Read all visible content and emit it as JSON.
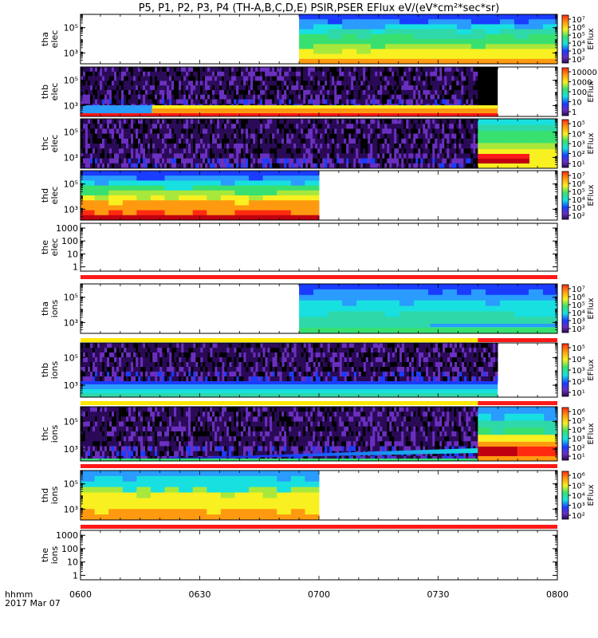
{
  "title": "P5, P1, P2, P3, P4 (TH-A,B,C,D,E) PSIR,PSER EFlux eV/(eV*cm²*sec*sr)",
  "colors": {
    "black": "#000000",
    "indigo": "#2a0a57",
    "purple": "#6a2fbf",
    "blue": "#1a3cff",
    "skyblue": "#2a9bff",
    "cyan": "#18e0e0",
    "teal": "#2fd8a8",
    "green": "#38e070",
    "yellowgreen": "#a8e83c",
    "yellow": "#f8f020",
    "orange": "#ff9a10",
    "red": "#ff2a10",
    "darkred": "#c00010",
    "bar_red": "#ff1818",
    "bar_yellow": "#ffe800"
  },
  "chart_data": {
    "type": "heatmap",
    "x_ticks": [
      "0600",
      "0630",
      "0700",
      "0730",
      "0800"
    ],
    "x_range_min": [
      0,
      120
    ],
    "x_label_left": "hhmm",
    "x_label_date": "2017 Mar 07",
    "panels": [
      {
        "name": "tha-elec",
        "ylabel": [
          "tha",
          "elec"
        ],
        "ytick_labels": [
          "10⁵",
          "10³"
        ],
        "cbar_label": "EFlux",
        "cbar_ticks": [
          "10⁷",
          "10⁶",
          "10⁵",
          "10⁴",
          "10³",
          "10²"
        ],
        "data_range_min": [
          55,
          120
        ]
      },
      {
        "name": "thb-elec",
        "ylabel": [
          "thb",
          "elec"
        ],
        "ytick_labels": [
          "10⁵",
          "10³"
        ],
        "cbar_label": "EFlux",
        "cbar_ticks": [
          "10000",
          "1000",
          "100",
          "10",
          "1"
        ],
        "data_range_min": [
          0,
          105
        ]
      },
      {
        "name": "thc-elec",
        "ylabel": [
          "thc",
          "elec"
        ],
        "ytick_labels": [
          "10⁵",
          "10³"
        ],
        "cbar_label": "EFlux",
        "cbar_ticks": [
          "10⁵",
          "10⁴",
          "10³",
          "10²",
          "10¹"
        ],
        "data_range_min": [
          0,
          120
        ]
      },
      {
        "name": "thd-elec",
        "ylabel": [
          "thd",
          "elec"
        ],
        "ytick_labels": [
          "10⁵",
          "10³"
        ],
        "cbar_label": "EFlux",
        "cbar_ticks": [
          "10⁷",
          "10⁶",
          "10⁵",
          "10⁴",
          "10³",
          "10²"
        ],
        "data_range_min": [
          0,
          60
        ]
      },
      {
        "name": "the-elec",
        "ylabel": [
          "the",
          "elec"
        ],
        "ytick_labels": [
          "1000",
          "100",
          "10",
          "1"
        ],
        "data_range_min": [
          0,
          0
        ]
      },
      {
        "name": "tha-ions",
        "ylabel": [
          "tha",
          "ions"
        ],
        "ytick_labels": [
          "10⁵",
          "10³"
        ],
        "cbar_label": "EFlux",
        "cbar_ticks": [
          "10⁷",
          "10⁶",
          "10⁵",
          "10⁴",
          "10³",
          "10²"
        ],
        "data_range_min": [
          55,
          120
        ]
      },
      {
        "name": "thb-ions",
        "ylabel": [
          "thb",
          "ions"
        ],
        "ytick_labels": [
          "10⁵",
          "10³"
        ],
        "cbar_label": "EFlux",
        "cbar_ticks": [
          "10⁵",
          "10⁴",
          "10³",
          "10²",
          "10¹"
        ],
        "data_range_min": [
          0,
          105
        ]
      },
      {
        "name": "thc-ions",
        "ylabel": [
          "thc",
          "ions"
        ],
        "ytick_labels": [
          "10⁵",
          "10³"
        ],
        "cbar_label": "EFlux",
        "cbar_ticks": [
          "10⁶",
          "10⁵",
          "10⁴",
          "10³",
          "10²",
          "10¹"
        ],
        "data_range_min": [
          0,
          120
        ]
      },
      {
        "name": "thd-ions",
        "ylabel": [
          "thd",
          "ions"
        ],
        "ytick_labels": [
          "10⁵",
          "10³"
        ],
        "cbar_label": "EFlux",
        "cbar_ticks": [
          "10⁶",
          "10⁵",
          "10⁴",
          "10³",
          "10²"
        ],
        "data_range_min": [
          0,
          60
        ]
      },
      {
        "name": "the-ions",
        "ylabel": [
          "the",
          "ions"
        ],
        "ytick_labels": [
          "1000",
          "100",
          "10",
          "1"
        ],
        "data_range_min": [
          0,
          0
        ]
      }
    ],
    "status_bars": [
      {
        "after": "the-elec",
        "segments": [
          {
            "min": [
              0,
              120
            ],
            "color": "bar_red"
          }
        ]
      },
      {
        "after": "tha-ions",
        "segments": [
          {
            "min": [
              0,
              100
            ],
            "color": "bar_yellow"
          },
          {
            "min": [
              100,
              120
            ],
            "color": "bar_red"
          }
        ]
      },
      {
        "after": "thb-ions",
        "segments": [
          {
            "min": [
              0,
              100
            ],
            "color": "bar_yellow"
          },
          {
            "min": [
              100,
              120
            ],
            "color": "bar_red"
          }
        ]
      },
      {
        "after": "thc-ions",
        "segments": [
          {
            "min": [
              0,
              120
            ],
            "color": "bar_red"
          }
        ]
      },
      {
        "after": "thd-ions",
        "segments": [
          {
            "min": [
              0,
              120
            ],
            "color": "bar_red"
          }
        ]
      }
    ]
  }
}
